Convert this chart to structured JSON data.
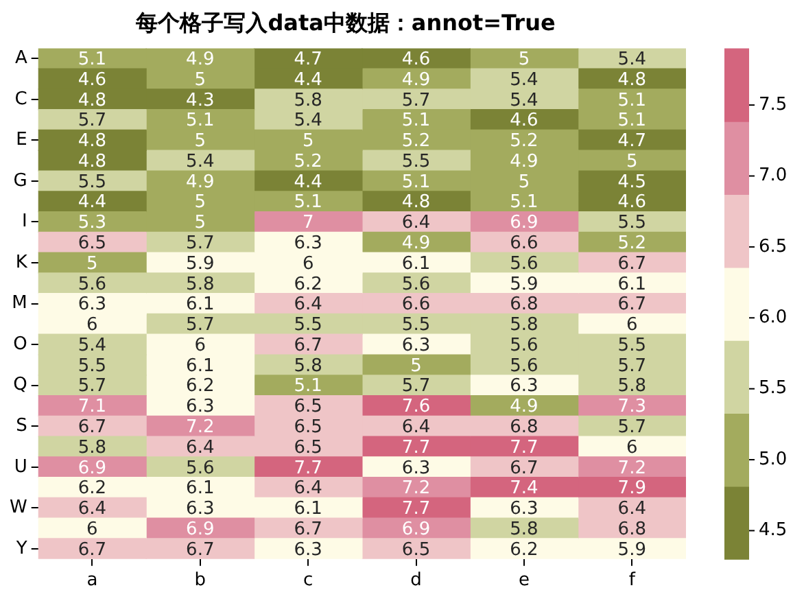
{
  "chart_data": {
    "type": "heatmap",
    "title": "每个格子写入data中数据：annot=True",
    "categories": [
      "a",
      "b",
      "c",
      "d",
      "e",
      "f"
    ],
    "y_categories": [
      "A",
      null,
      "C",
      null,
      "E",
      null,
      "G",
      null,
      "I",
      null,
      "K",
      null,
      "M",
      null,
      "O",
      null,
      "Q",
      null,
      "S",
      null,
      "U",
      null,
      "W",
      null,
      "Y"
    ],
    "cells": [
      [
        5.1,
        4.9,
        4.7,
        4.6,
        5,
        5.4
      ],
      [
        4.6,
        5,
        4.4,
        4.9,
        5.4,
        4.8
      ],
      [
        4.8,
        4.3,
        5.8,
        5.7,
        5.4,
        5.1
      ],
      [
        5.7,
        5.1,
        5.4,
        5.1,
        4.6,
        5.1
      ],
      [
        4.8,
        5,
        5,
        5.2,
        5.2,
        4.7
      ],
      [
        4.8,
        5.4,
        5.2,
        5.5,
        4.9,
        5
      ],
      [
        5.5,
        4.9,
        4.4,
        5.1,
        5,
        4.5
      ],
      [
        4.4,
        5,
        5.1,
        4.8,
        5.1,
        4.6
      ],
      [
        5.3,
        5,
        7,
        6.4,
        6.9,
        5.5
      ],
      [
        6.5,
        5.7,
        6.3,
        4.9,
        6.6,
        5.2
      ],
      [
        5,
        5.9,
        6,
        6.1,
        5.6,
        6.7
      ],
      [
        5.6,
        5.8,
        6.2,
        5.6,
        5.9,
        6.1
      ],
      [
        6.3,
        6.1,
        6.4,
        6.6,
        6.8,
        6.7
      ],
      [
        6,
        5.7,
        5.5,
        5.5,
        5.8,
        6
      ],
      [
        5.4,
        6,
        6.7,
        6.3,
        5.6,
        5.5
      ],
      [
        5.5,
        6.1,
        5.8,
        5,
        5.6,
        5.7
      ],
      [
        5.7,
        6.2,
        5.1,
        5.7,
        6.3,
        5.8
      ],
      [
        7.1,
        6.3,
        6.5,
        7.6,
        4.9,
        7.3
      ],
      [
        6.7,
        7.2,
        6.5,
        6.4,
        6.8,
        5.7
      ],
      [
        5.8,
        6.4,
        6.5,
        7.7,
        7.7,
        6
      ],
      [
        6.9,
        5.6,
        7.7,
        6.3,
        6.7,
        7.2
      ],
      [
        6.2,
        6.1,
        6.4,
        7.2,
        7.4,
        7.9
      ],
      [
        6.4,
        6.3,
        6.1,
        7.7,
        6.3,
        6.4
      ],
      [
        6,
        6.9,
        6.7,
        6.9,
        5.8,
        6.8
      ],
      [
        6.7,
        6.7,
        6.3,
        6.5,
        6.2,
        5.9
      ]
    ],
    "colors": [
      "#7b8336",
      "#a3ab5e",
      "#d0d5a2",
      "#fefbe6",
      "#efc5c7",
      "#df8fa2",
      "#d4657e"
    ],
    "clim": [
      4.3,
      7.9
    ],
    "cticks": [
      4.5,
      {
        "value": 5,
        "label": "5.0"
      },
      5.5,
      {
        "value": 6,
        "label": "6.0"
      },
      6.5,
      {
        "value": 7,
        "label": "7.0"
      },
      7.5
    ],
    "data_labels": true,
    "grid": false,
    "legend": false
  }
}
